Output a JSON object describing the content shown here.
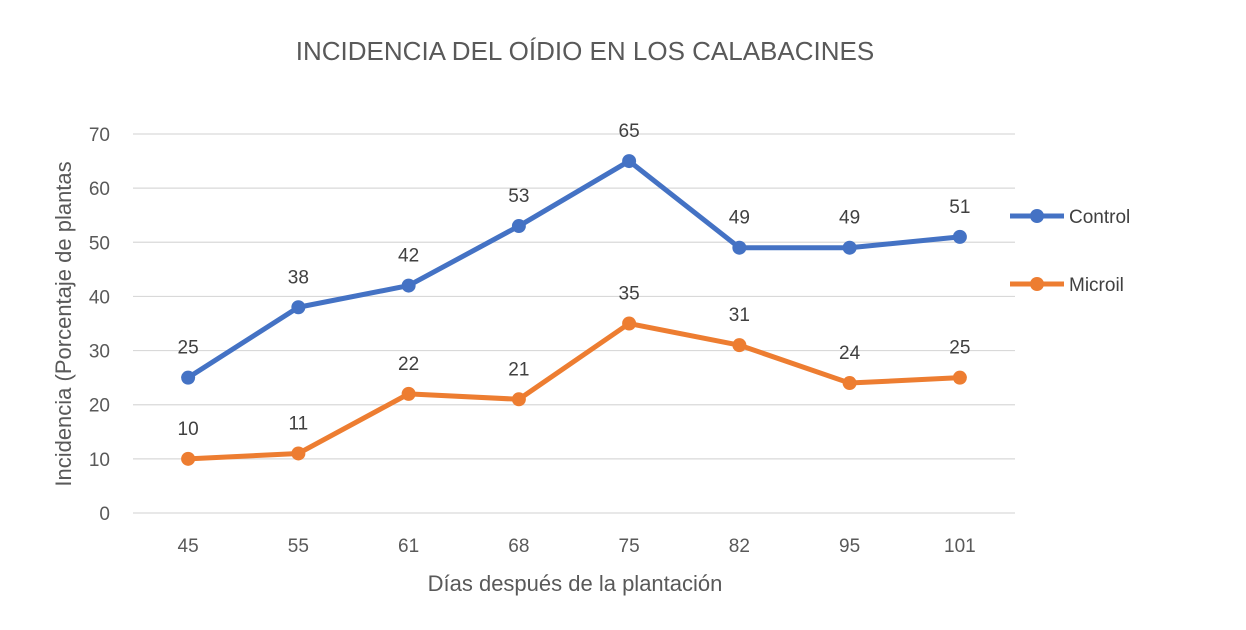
{
  "chart_data": {
    "type": "line",
    "title": "INCIDENCIA DEL OÍDIO EN LOS CALABACINES",
    "xlabel": "Días después de la plantación",
    "ylabel": "Incidencia (Porcentaje de plantas",
    "categories": [
      "45",
      "55",
      "61",
      "68",
      "75",
      "82",
      "95",
      "101"
    ],
    "ylim": [
      0,
      70
    ],
    "yticks": [
      0,
      10,
      20,
      30,
      40,
      50,
      60,
      70
    ],
    "grid": true,
    "legend_position": "right",
    "series": [
      {
        "name": "Control",
        "color": "#4472C4",
        "values": [
          25,
          38,
          42,
          53,
          65,
          49,
          49,
          51
        ]
      },
      {
        "name": "Microil",
        "color": "#ED7D31",
        "values": [
          10,
          11,
          22,
          21,
          35,
          31,
          24,
          25
        ]
      }
    ]
  }
}
